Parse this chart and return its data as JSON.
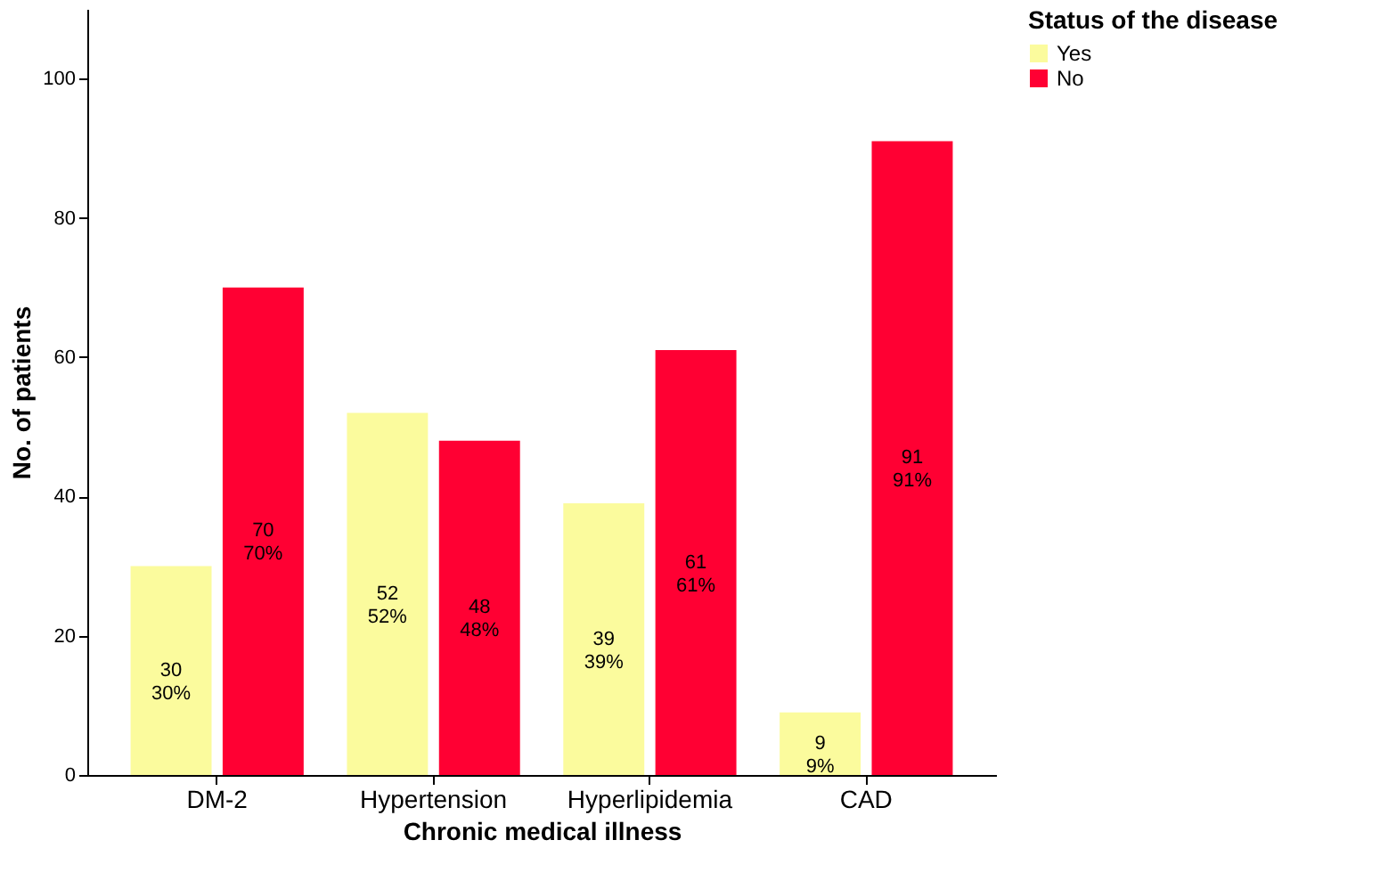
{
  "chart_data": {
    "type": "bar",
    "xlabel": "Chronic medical illness",
    "ylabel": "No. of patients",
    "legend_title": "Status of the disease",
    "categories": [
      "DM-2",
      "Hypertension",
      "Hyperlipidemia",
      "CAD"
    ],
    "series": [
      {
        "name": "Yes",
        "color": "#fbfb9d",
        "values": [
          30,
          52,
          39,
          9
        ],
        "value_labels": [
          "30\n30%",
          "52\n52%",
          "39\n39%",
          "9\n9%"
        ]
      },
      {
        "name": "No",
        "color": "#ff0033",
        "values": [
          70,
          48,
          61,
          91
        ],
        "value_labels": [
          "70\n70%",
          "48\n48%",
          "61\n61%",
          "91\n91%"
        ]
      }
    ],
    "ylim": [
      0,
      110
    ],
    "yticks": [
      0,
      20,
      40,
      60,
      80,
      100
    ],
    "grid": false,
    "legend": "top right"
  }
}
